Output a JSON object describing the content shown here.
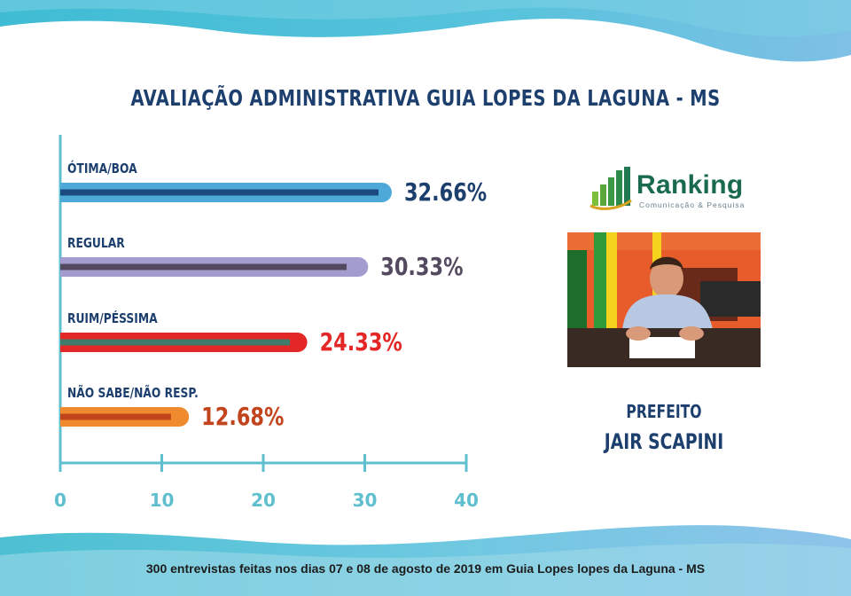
{
  "header": {
    "title": "AVALIAÇÃO ADMINISTRATIVA GUIA LOPES DA LAGUNA - MS"
  },
  "chart_data": {
    "type": "bar",
    "orientation": "horizontal",
    "categories": [
      "ÓTIMA/BOA",
      "REGULAR",
      "RUIM/PÉSSIMA",
      "NÃO SABE/NÃO RESP."
    ],
    "values": [
      32.66,
      30.33,
      24.33,
      12.68
    ],
    "value_labels": [
      "32.66%",
      "30.33%",
      "24.33%",
      "12.68%"
    ],
    "colors": [
      {
        "outer": "#4ea9d8",
        "inner": "#1a4a80",
        "label": "#1d3f6e"
      },
      {
        "outer": "#a39ccf",
        "inner": "#544a5f",
        "label": "#544a5f"
      },
      {
        "outer": "#e32727",
        "inner": "#3f7a6a",
        "label": "#e32727"
      },
      {
        "outer": "#f08a2e",
        "inner": "#c2441c",
        "label": "#c2441c"
      }
    ],
    "inner_fraction": [
      0.96,
      0.93,
      0.93,
      0.86
    ],
    "xlim": [
      0,
      40
    ],
    "xticks": [
      "0",
      "10",
      "20",
      "30",
      "40"
    ],
    "axis_color": "#5fbfcf",
    "title": "AVALIAÇÃO ADMINISTRATIVA GUIA LOPES DA LAGUNA - MS",
    "xlabel": "",
    "ylabel": "",
    "grid": false
  },
  "brand": {
    "name": "Ranking",
    "tagline": "Comunicação & Pesquisa"
  },
  "photo_caption": {
    "role": "PREFEITO",
    "name": "JAIR SCAPINI"
  },
  "footer": {
    "text": "300 entrevistas feitas nos dias 07 e 08 de agosto de 2019 em Guia Lopes lopes da Laguna - MS"
  }
}
